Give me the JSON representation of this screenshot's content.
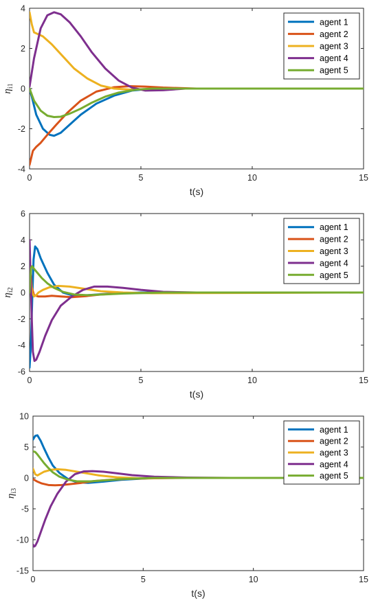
{
  "colors": {
    "agent_1": "#0072BD",
    "agent_2": "#D95319",
    "agent_3": "#EDB120",
    "agent_4": "#7E2F8E",
    "agent_5": "#77AC30"
  },
  "chart_data": [
    {
      "type": "line",
      "xlabel": "t(s)",
      "ylabel": "η",
      "ylabel_sub": "i1",
      "xlim": [
        0,
        15
      ],
      "ylim": [
        -4,
        4
      ],
      "xticks": [
        0,
        5,
        10,
        15
      ],
      "yticks": [
        -4,
        -2,
        0,
        2,
        4
      ],
      "grid": false,
      "legend_position": "top-right",
      "series": [
        {
          "name": "agent 1",
          "color": "#0072BD",
          "x": [
            0,
            0.1,
            0.3,
            0.6,
            0.9,
            1.1,
            1.4,
            1.8,
            2.3,
            3,
            3.8,
            4.6,
            5.5,
            7,
            15
          ],
          "y": [
            0,
            -0.4,
            -1.3,
            -2.0,
            -2.3,
            -2.35,
            -2.2,
            -1.8,
            -1.3,
            -0.75,
            -0.35,
            -0.1,
            0.0,
            0.0,
            0.0
          ]
        },
        {
          "name": "agent 2",
          "color": "#D95319",
          "x": [
            0,
            0.15,
            0.3,
            0.5,
            0.8,
            1.2,
            1.7,
            2.3,
            3,
            3.8,
            4.5,
            5.2,
            6,
            7.5,
            15
          ],
          "y": [
            -3.8,
            -3.1,
            -2.9,
            -2.7,
            -2.3,
            -1.8,
            -1.2,
            -0.6,
            -0.15,
            0.07,
            0.12,
            0.1,
            0.05,
            0.0,
            0.0
          ]
        },
        {
          "name": "agent 3",
          "color": "#EDB120",
          "x": [
            0,
            0.1,
            0.2,
            0.4,
            0.6,
            1.0,
            1.5,
            2.0,
            2.6,
            3.2,
            3.8,
            4.5,
            6,
            15
          ],
          "y": [
            3.8,
            3.2,
            2.8,
            2.7,
            2.6,
            2.2,
            1.6,
            1.0,
            0.5,
            0.15,
            0.0,
            -0.05,
            0.0,
            0.0
          ]
        },
        {
          "name": "agent 4",
          "color": "#7E2F8E",
          "x": [
            0,
            0.2,
            0.5,
            0.8,
            1.1,
            1.4,
            1.8,
            2.3,
            2.8,
            3.4,
            4.0,
            4.6,
            5.2,
            6,
            7,
            15
          ],
          "y": [
            0.1,
            1.5,
            3.0,
            3.65,
            3.8,
            3.7,
            3.3,
            2.6,
            1.8,
            1.0,
            0.4,
            0.05,
            -0.1,
            -0.08,
            0.0,
            0.0
          ]
        },
        {
          "name": "agent 5",
          "color": "#77AC30",
          "x": [
            0,
            0.2,
            0.5,
            0.8,
            1.1,
            1.4,
            1.8,
            2.3,
            2.8,
            3.4,
            4.0,
            4.8,
            5.5,
            7,
            15
          ],
          "y": [
            0.0,
            -0.6,
            -1.1,
            -1.35,
            -1.42,
            -1.4,
            -1.25,
            -1.0,
            -0.7,
            -0.4,
            -0.2,
            -0.05,
            0.0,
            0.0,
            0.0
          ]
        }
      ]
    },
    {
      "type": "line",
      "xlabel": "t(s)",
      "ylabel": "η",
      "ylabel_sub": "i2",
      "xlim": [
        0,
        15
      ],
      "ylim": [
        -6,
        6
      ],
      "xticks": [
        0,
        5,
        10,
        15
      ],
      "yticks": [
        -6,
        -4,
        -2,
        0,
        2,
        4,
        6
      ],
      "grid": false,
      "legend_position": "top-right",
      "series": [
        {
          "name": "agent 1",
          "color": "#0072BD",
          "x": [
            0,
            0.06,
            0.12,
            0.18,
            0.25,
            0.35,
            0.5,
            0.8,
            1.1,
            1.5,
            2.0,
            2.6,
            3.5,
            5,
            15
          ],
          "y": [
            -5.7,
            -4.0,
            -0.5,
            2.5,
            3.5,
            3.3,
            2.6,
            1.5,
            0.6,
            0.0,
            -0.25,
            -0.2,
            -0.1,
            0.0,
            0.0
          ]
        },
        {
          "name": "agent 2",
          "color": "#D95319",
          "x": [
            0,
            0.05,
            0.1,
            0.2,
            0.4,
            0.7,
            1.0,
            1.4,
            1.9,
            2.5,
            3.2,
            4.2,
            6,
            15
          ],
          "y": [
            3.0,
            1.5,
            0.4,
            -0.2,
            -0.3,
            -0.3,
            -0.25,
            -0.3,
            -0.35,
            -0.28,
            -0.15,
            -0.05,
            0.0,
            0.0
          ]
        },
        {
          "name": "agent 3",
          "color": "#EDB120",
          "x": [
            0,
            0.05,
            0.12,
            0.2,
            0.3,
            0.4,
            0.6,
            0.9,
            1.3,
            1.8,
            2.4,
            3.2,
            4.2,
            5.5,
            15
          ],
          "y": [
            2.0,
            1.0,
            0.0,
            -0.3,
            -0.2,
            0.0,
            0.2,
            0.4,
            0.5,
            0.45,
            0.3,
            0.1,
            0.0,
            -0.05,
            0.0
          ]
        },
        {
          "name": "agent 4",
          "color": "#7E2F8E",
          "x": [
            0,
            0.05,
            0.1,
            0.15,
            0.22,
            0.3,
            0.45,
            0.7,
            1.0,
            1.4,
            1.9,
            2.4,
            2.9,
            3.5,
            4.2,
            5.0,
            6.0,
            7.5,
            9,
            15
          ],
          "y": [
            4.0,
            1.0,
            -2.0,
            -4.5,
            -5.2,
            -5.1,
            -4.5,
            -3.3,
            -2.1,
            -1.0,
            -0.3,
            0.2,
            0.45,
            0.45,
            0.35,
            0.2,
            0.05,
            0.0,
            0.0,
            0.0
          ]
        },
        {
          "name": "agent 5",
          "color": "#77AC30",
          "x": [
            0,
            0.03,
            0.07,
            0.12,
            0.2,
            0.35,
            0.55,
            0.8,
            1.1,
            1.5,
            2.0,
            2.6,
            3.3,
            4.2,
            6,
            15
          ],
          "y": [
            0.0,
            1.0,
            1.9,
            2.0,
            1.8,
            1.5,
            1.1,
            0.7,
            0.35,
            0.05,
            -0.15,
            -0.2,
            -0.15,
            -0.08,
            0.0,
            0.0
          ]
        }
      ]
    },
    {
      "type": "line",
      "xlabel": "t(s)",
      "ylabel": "η",
      "ylabel_sub": "i3",
      "xlim": [
        0,
        15
      ],
      "ylim": [
        -15,
        10
      ],
      "xticks": [
        0,
        5,
        10,
        15
      ],
      "yticks": [
        -15,
        -10,
        -5,
        0,
        5,
        10
      ],
      "grid": false,
      "legend_position": "top-right",
      "series": [
        {
          "name": "agent 1",
          "color": "#0072BD",
          "x": [
            0,
            0.1,
            0.2,
            0.35,
            0.5,
            0.7,
            0.9,
            1.2,
            1.6,
            2.0,
            2.5,
            3.2,
            4.0,
            5.5,
            15
          ],
          "y": [
            6.2,
            6.8,
            6.9,
            6.0,
            4.8,
            3.3,
            2.0,
            0.8,
            -0.2,
            -0.7,
            -0.8,
            -0.6,
            -0.3,
            0.0,
            0.0
          ]
        },
        {
          "name": "agent 2",
          "color": "#D95319",
          "x": [
            0,
            0.2,
            0.4,
            0.7,
            1.0,
            1.3,
            1.7,
            2.2,
            2.8,
            3.5,
            4.3,
            5.5,
            7,
            15
          ],
          "y": [
            -0.2,
            -0.6,
            -0.9,
            -1.15,
            -1.2,
            -1.15,
            -1.0,
            -0.8,
            -0.5,
            -0.3,
            -0.15,
            -0.05,
            0.0,
            0.0
          ]
        },
        {
          "name": "agent 3",
          "color": "#EDB120",
          "x": [
            0,
            0.1,
            0.2,
            0.3,
            0.5,
            0.8,
            1.1,
            1.5,
            2.0,
            2.5,
            3.0,
            3.8,
            4.8,
            6,
            15
          ],
          "y": [
            1.5,
            0.6,
            0.4,
            0.6,
            1.0,
            1.3,
            1.4,
            1.3,
            1.0,
            0.7,
            0.4,
            0.1,
            -0.05,
            0.0,
            0.0
          ]
        },
        {
          "name": "agent 4",
          "color": "#7E2F8E",
          "x": [
            0,
            0.05,
            0.1,
            0.2,
            0.35,
            0.55,
            0.8,
            1.1,
            1.5,
            1.9,
            2.3,
            2.7,
            3.2,
            3.8,
            4.5,
            5.5,
            7,
            9,
            15
          ],
          "y": [
            -10.8,
            -11.1,
            -11.0,
            -10.3,
            -8.8,
            -6.8,
            -4.6,
            -2.6,
            -0.6,
            0.6,
            1.05,
            1.1,
            1.0,
            0.75,
            0.45,
            0.2,
            0.05,
            0.0,
            0.0
          ]
        },
        {
          "name": "agent 5",
          "color": "#77AC30",
          "x": [
            0,
            0.1,
            0.2,
            0.35,
            0.5,
            0.7,
            0.9,
            1.2,
            1.6,
            2.0,
            2.6,
            3.2,
            4.0,
            5.5,
            15
          ],
          "y": [
            4.3,
            4.2,
            3.8,
            3.1,
            2.4,
            1.6,
            0.9,
            0.2,
            -0.3,
            -0.55,
            -0.55,
            -0.4,
            -0.2,
            0.0,
            0.0
          ]
        }
      ]
    }
  ]
}
